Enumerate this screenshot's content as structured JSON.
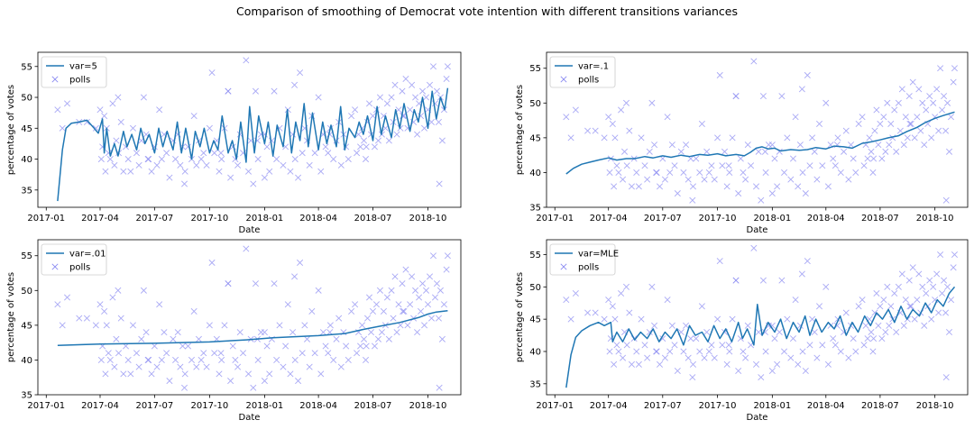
{
  "figure": {
    "suptitle": "Comparison of smoothing of Democrat vote intention with different transitions variances"
  },
  "colors": {
    "line": "#1f77b4",
    "polls": "#8c8cf2",
    "axes": "#000000",
    "legend_border": "#cccccc"
  },
  "chart_data": [
    {
      "type": "line",
      "title": "",
      "xlabel": "Date",
      "ylabel": "percentage of votes",
      "x_ticks": [
        "2017-01",
        "2017-04",
        "2017-07",
        "2017-10",
        "2018-01",
        "2018-04",
        "2018-07",
        "2018-10"
      ],
      "y_ticks": [
        35,
        40,
        45,
        50,
        55
      ],
      "xlim": [
        "2016-12-18",
        "2018-11-25"
      ],
      "ylim": [
        32.2,
        57.3
      ],
      "legend_position": "upper left",
      "series": [
        {
          "name": "var=5",
          "kind": "line",
          "color": "#1f77b4",
          "x": [
            "2017-01-20",
            "2017-01-28",
            "2017-02-03",
            "2017-02-12",
            "2017-02-25",
            "2017-03-10",
            "2017-03-22",
            "2017-03-29",
            "2017-04-05",
            "2017-04-08",
            "2017-04-12",
            "2017-04-18",
            "2017-04-25",
            "2017-05-01",
            "2017-05-10",
            "2017-05-16",
            "2017-05-24",
            "2017-06-01",
            "2017-06-08",
            "2017-06-15",
            "2017-06-22",
            "2017-07-01",
            "2017-07-08",
            "2017-07-15",
            "2017-07-22",
            "2017-08-01",
            "2017-08-08",
            "2017-08-15",
            "2017-08-22",
            "2017-09-01",
            "2017-09-07",
            "2017-09-15",
            "2017-09-22",
            "2017-10-01",
            "2017-10-08",
            "2017-10-15",
            "2017-10-22",
            "2017-11-01",
            "2017-11-08",
            "2017-11-15",
            "2017-11-22",
            "2017-12-01",
            "2017-12-07",
            "2017-12-15",
            "2017-12-22",
            "2018-01-01",
            "2018-01-07",
            "2018-01-15",
            "2018-01-22",
            "2018-02-01",
            "2018-02-08",
            "2018-02-15",
            "2018-02-22",
            "2018-03-01",
            "2018-03-08",
            "2018-03-15",
            "2018-03-22",
            "2018-04-01",
            "2018-04-08",
            "2018-04-15",
            "2018-04-22",
            "2018-05-01",
            "2018-05-08",
            "2018-05-15",
            "2018-05-22",
            "2018-06-01",
            "2018-06-08",
            "2018-06-15",
            "2018-06-22",
            "2018-07-01",
            "2018-07-08",
            "2018-07-15",
            "2018-07-22",
            "2018-08-01",
            "2018-08-08",
            "2018-08-15",
            "2018-08-22",
            "2018-09-01",
            "2018-09-08",
            "2018-09-15",
            "2018-09-22",
            "2018-10-01",
            "2018-10-08",
            "2018-10-15",
            "2018-10-22",
            "2018-10-29",
            "2018-11-03"
          ],
          "y": [
            33.2,
            41.5,
            45.0,
            45.8,
            46.0,
            46.3,
            45.0,
            44.2,
            46.5,
            41.0,
            45.0,
            40.5,
            42.5,
            40.5,
            44.5,
            42.0,
            44.0,
            41.5,
            45.0,
            42.5,
            44.0,
            41.0,
            45.0,
            42.0,
            44.5,
            41.5,
            46.0,
            41.0,
            45.0,
            40.0,
            44.5,
            42.0,
            45.0,
            41.0,
            43.0,
            41.5,
            47.0,
            41.0,
            43.0,
            40.0,
            46.0,
            39.5,
            48.5,
            41.0,
            47.0,
            42.5,
            46.0,
            40.5,
            45.5,
            42.0,
            48.0,
            41.0,
            46.0,
            43.0,
            49.0,
            42.0,
            47.5,
            41.5,
            46.0,
            42.5,
            45.5,
            42.0,
            48.5,
            41.5,
            45.0,
            43.5,
            46.0,
            44.0,
            47.0,
            43.0,
            48.5,
            44.0,
            47.0,
            43.5,
            48.0,
            45.0,
            49.0,
            44.5,
            48.0,
            46.0,
            50.0,
            45.0,
            51.0,
            46.5,
            50.0,
            48.0,
            51.5
          ]
        },
        {
          "name": "polls",
          "kind": "scatter",
          "marker": "x",
          "color": "#8c8cf2"
        }
      ]
    },
    {
      "type": "line",
      "title": "",
      "xlabel": "Date",
      "ylabel": "percentage of votes",
      "x_ticks": [
        "2017-01",
        "2017-04",
        "2017-07",
        "2017-10",
        "2018-01",
        "2018-04",
        "2018-07",
        "2018-10"
      ],
      "y_ticks": [
        35,
        40,
        45,
        50,
        55
      ],
      "xlim": [
        "2016-12-18",
        "2018-11-25"
      ],
      "ylim": [
        35,
        57.3
      ],
      "legend_position": "upper left",
      "series": [
        {
          "name": "var=.1",
          "kind": "line",
          "color": "#1f77b4",
          "x": [
            "2017-01-20",
            "2017-02-01",
            "2017-02-15",
            "2017-03-01",
            "2017-03-15",
            "2017-04-01",
            "2017-04-15",
            "2017-05-01",
            "2017-05-15",
            "2017-06-01",
            "2017-06-15",
            "2017-07-01",
            "2017-07-15",
            "2017-08-01",
            "2017-08-15",
            "2017-09-01",
            "2017-09-15",
            "2017-10-01",
            "2017-10-15",
            "2017-11-01",
            "2017-11-15",
            "2017-11-25",
            "2017-12-05",
            "2017-12-15",
            "2017-12-25",
            "2018-01-05",
            "2018-01-15",
            "2018-02-01",
            "2018-02-15",
            "2018-03-01",
            "2018-03-15",
            "2018-04-01",
            "2018-04-15",
            "2018-05-01",
            "2018-05-15",
            "2018-06-01",
            "2018-06-15",
            "2018-07-01",
            "2018-07-15",
            "2018-08-01",
            "2018-08-15",
            "2018-09-01",
            "2018-09-15",
            "2018-10-01",
            "2018-10-15",
            "2018-11-03"
          ],
          "y": [
            39.8,
            40.6,
            41.2,
            41.5,
            41.8,
            42.1,
            41.8,
            42.0,
            42.0,
            42.3,
            42.1,
            42.4,
            42.2,
            42.5,
            42.3,
            42.6,
            42.5,
            42.7,
            42.4,
            42.6,
            42.4,
            42.9,
            43.5,
            43.7,
            43.4,
            43.5,
            43.1,
            43.3,
            43.2,
            43.3,
            43.6,
            43.4,
            43.8,
            43.7,
            43.5,
            44.2,
            44.4,
            44.7,
            45.0,
            45.3,
            45.9,
            46.5,
            47.2,
            47.8,
            48.2,
            48.7
          ]
        },
        {
          "name": "polls",
          "kind": "scatter",
          "marker": "x",
          "color": "#8c8cf2"
        }
      ]
    },
    {
      "type": "line",
      "title": "",
      "xlabel": "Date",
      "ylabel": "percentage of votes",
      "x_ticks": [
        "2017-01",
        "2017-04",
        "2017-07",
        "2017-10",
        "2018-01",
        "2018-04",
        "2018-07",
        "2018-10"
      ],
      "y_ticks": [
        35,
        40,
        45,
        50,
        55
      ],
      "xlim": [
        "2016-12-18",
        "2018-11-25"
      ],
      "ylim": [
        35,
        57.3
      ],
      "legend_position": "upper left",
      "series": [
        {
          "name": "var=.01",
          "kind": "line",
          "color": "#1f77b4",
          "x": [
            "2017-01-20",
            "2017-04-01",
            "2017-07-01",
            "2017-10-01",
            "2017-12-01",
            "2018-01-15",
            "2018-04-01",
            "2018-05-15",
            "2018-06-15",
            "2018-07-15",
            "2018-08-15",
            "2018-09-15",
            "2018-10-01",
            "2018-10-15",
            "2018-11-03"
          ],
          "y": [
            42.1,
            42.3,
            42.4,
            42.6,
            42.9,
            43.2,
            43.5,
            43.8,
            44.4,
            44.9,
            45.4,
            46.1,
            46.6,
            46.9,
            47.1
          ]
        },
        {
          "name": "polls",
          "kind": "scatter",
          "marker": "x",
          "color": "#8c8cf2"
        }
      ]
    },
    {
      "type": "line",
      "title": "",
      "xlabel": "Date",
      "ylabel": "percentage of votes",
      "x_ticks": [
        "2017-01",
        "2017-04",
        "2017-07",
        "2017-10",
        "2018-01",
        "2018-04",
        "2018-07",
        "2018-10"
      ],
      "y_ticks": [
        35,
        40,
        45,
        50,
        55
      ],
      "xlim": [
        "2016-12-18",
        "2018-11-25"
      ],
      "ylim": [
        33.3,
        57.3
      ],
      "legend_position": "upper left",
      "series": [
        {
          "name": "var=MLE",
          "kind": "line",
          "color": "#1f77b4",
          "x": [
            "2017-01-20",
            "2017-01-28",
            "2017-02-05",
            "2017-02-15",
            "2017-03-01",
            "2017-03-15",
            "2017-03-25",
            "2017-04-05",
            "2017-04-08",
            "2017-04-15",
            "2017-04-25",
            "2017-05-05",
            "2017-05-15",
            "2017-05-25",
            "2017-06-05",
            "2017-06-15",
            "2017-06-25",
            "2017-07-05",
            "2017-07-15",
            "2017-07-25",
            "2017-08-05",
            "2017-08-15",
            "2017-08-25",
            "2017-09-05",
            "2017-09-15",
            "2017-09-25",
            "2017-10-05",
            "2017-10-15",
            "2017-10-25",
            "2017-11-05",
            "2017-11-12",
            "2017-11-20",
            "2017-12-01",
            "2017-12-07",
            "2017-12-15",
            "2017-12-25",
            "2018-01-05",
            "2018-01-15",
            "2018-01-25",
            "2018-02-05",
            "2018-02-15",
            "2018-02-25",
            "2018-03-05",
            "2018-03-15",
            "2018-03-25",
            "2018-04-05",
            "2018-04-15",
            "2018-04-25",
            "2018-05-05",
            "2018-05-15",
            "2018-05-25",
            "2018-06-05",
            "2018-06-15",
            "2018-06-25",
            "2018-07-05",
            "2018-07-15",
            "2018-07-25",
            "2018-08-05",
            "2018-08-15",
            "2018-08-25",
            "2018-09-05",
            "2018-09-15",
            "2018-09-25",
            "2018-10-05",
            "2018-10-15",
            "2018-10-25",
            "2018-11-03"
          ],
          "y": [
            34.4,
            39.5,
            42.2,
            43.2,
            44.0,
            44.5,
            44.0,
            44.5,
            41.5,
            43.0,
            41.5,
            43.5,
            41.8,
            43.0,
            42.0,
            43.5,
            41.5,
            43.0,
            42.0,
            43.5,
            41.0,
            44.0,
            42.5,
            43.0,
            41.5,
            44.0,
            42.0,
            43.5,
            41.5,
            44.5,
            42.0,
            43.5,
            41.0,
            47.3,
            42.5,
            44.5,
            43.0,
            45.0,
            42.0,
            44.5,
            43.0,
            45.5,
            42.5,
            45.0,
            43.0,
            44.5,
            43.5,
            45.5,
            42.5,
            44.5,
            43.0,
            45.5,
            44.0,
            46.0,
            45.0,
            46.5,
            44.5,
            47.0,
            45.0,
            46.5,
            45.5,
            47.5,
            46.0,
            48.0,
            47.0,
            49.0,
            50.0
          ]
        },
        {
          "name": "polls",
          "kind": "scatter",
          "marker": "x",
          "color": "#8c8cf2"
        }
      ]
    }
  ],
  "polls": {
    "x": [
      "2017-01-20",
      "2017-01-28",
      "2017-02-05",
      "2017-02-25",
      "2017-03-10",
      "2017-03-25",
      "2017-04-01",
      "2017-04-03",
      "2017-04-05",
      "2017-04-08",
      "2017-04-10",
      "2017-04-12",
      "2017-04-15",
      "2017-04-18",
      "2017-04-22",
      "2017-04-25",
      "2017-04-28",
      "2017-05-02",
      "2017-05-06",
      "2017-05-10",
      "2017-05-14",
      "2017-05-18",
      "2017-05-22",
      "2017-05-26",
      "2017-06-01",
      "2017-06-05",
      "2017-06-09",
      "2017-06-13",
      "2017-06-17",
      "2017-06-21",
      "2017-06-26",
      "2017-07-01",
      "2017-07-05",
      "2017-07-09",
      "2017-07-13",
      "2017-07-17",
      "2017-07-21",
      "2017-07-26",
      "2017-08-01",
      "2017-08-05",
      "2017-08-09",
      "2017-08-13",
      "2017-08-17",
      "2017-08-21",
      "2017-08-26",
      "2017-09-01",
      "2017-09-05",
      "2017-09-09",
      "2017-09-13",
      "2017-09-17",
      "2017-09-21",
      "2017-09-26",
      "2017-10-01",
      "2017-10-05",
      "2017-10-09",
      "2017-10-13",
      "2017-10-17",
      "2017-10-21",
      "2017-10-26",
      "2017-11-01",
      "2017-11-05",
      "2017-11-09",
      "2017-11-13",
      "2017-11-17",
      "2017-11-21",
      "2017-11-26",
      "2017-12-01",
      "2017-12-05",
      "2017-12-09",
      "2017-12-13",
      "2017-12-17",
      "2017-12-21",
      "2017-12-26",
      "2018-01-01",
      "2018-01-05",
      "2018-01-09",
      "2018-01-13",
      "2018-01-17",
      "2018-01-21",
      "2018-01-26",
      "2018-02-01",
      "2018-02-05",
      "2018-02-09",
      "2018-02-13",
      "2018-02-17",
      "2018-02-21",
      "2018-02-26",
      "2018-03-01",
      "2018-03-05",
      "2018-03-09",
      "2018-03-13",
      "2018-03-17",
      "2018-03-21",
      "2018-03-26",
      "2018-04-01",
      "2018-04-05",
      "2018-04-09",
      "2018-04-13",
      "2018-04-17",
      "2018-04-21",
      "2018-04-26",
      "2018-05-01",
      "2018-05-05",
      "2018-05-09",
      "2018-05-13",
      "2018-05-17",
      "2018-05-21",
      "2018-05-26",
      "2018-06-01",
      "2018-06-04",
      "2018-06-07",
      "2018-06-10",
      "2018-06-13",
      "2018-06-16",
      "2018-06-19",
      "2018-06-22",
      "2018-06-25",
      "2018-06-28",
      "2018-07-01",
      "2018-07-04",
      "2018-07-07",
      "2018-07-10",
      "2018-07-13",
      "2018-07-16",
      "2018-07-19",
      "2018-07-22",
      "2018-07-25",
      "2018-07-28",
      "2018-08-01",
      "2018-08-04",
      "2018-08-07",
      "2018-08-10",
      "2018-08-13",
      "2018-08-16",
      "2018-08-19",
      "2018-08-22",
      "2018-08-25",
      "2018-08-28",
      "2018-09-01",
      "2018-09-04",
      "2018-09-07",
      "2018-09-10",
      "2018-09-13",
      "2018-09-16",
      "2018-09-19",
      "2018-09-22",
      "2018-09-25",
      "2018-09-28",
      "2018-10-01",
      "2018-10-04",
      "2018-10-07",
      "2018-10-10",
      "2018-10-13",
      "2018-10-16",
      "2018-10-19",
      "2018-10-22",
      "2018-10-25",
      "2018-10-28",
      "2018-11-01",
      "2018-11-03",
      "2017-06-20",
      "2017-08-20",
      "2017-10-20",
      "2017-12-20",
      "2018-02-20",
      "2018-04-20",
      "2018-06-20",
      "2018-08-20",
      "2018-10-20",
      "2017-05-01",
      "2017-11-01",
      "2018-01-01"
    ],
    "y": [
      48,
      45,
      49,
      46,
      46,
      45,
      48,
      40,
      42,
      47,
      38,
      45,
      41,
      40,
      49,
      39,
      43,
      41,
      46,
      38,
      42,
      40,
      38,
      45,
      41,
      39,
      43,
      50,
      44,
      40,
      38,
      42,
      39,
      48,
      40,
      44,
      41,
      37,
      43,
      40,
      44,
      39,
      42,
      38,
      42,
      40,
      47,
      39,
      43,
      40,
      41,
      39,
      45,
      54,
      41,
      43,
      38,
      40,
      45,
      51,
      37,
      42,
      40,
      39,
      44,
      41,
      56,
      38,
      43,
      36,
      51,
      40,
      44,
      44,
      42,
      38,
      43,
      51,
      40,
      45,
      39,
      42,
      48,
      38,
      44,
      40,
      37,
      54,
      41,
      45,
      43,
      39,
      47,
      41,
      50,
      38,
      44,
      42,
      41,
      45,
      40,
      43,
      46,
      39,
      44,
      42,
      40,
      47,
      48,
      41,
      44,
      42,
      45,
      43,
      40,
      46,
      49,
      44,
      47,
      42,
      48,
      43,
      50,
      44,
      47,
      45,
      49,
      43,
      50,
      46,
      52,
      44,
      48,
      45,
      51,
      47,
      53,
      45,
      48,
      52,
      46,
      50,
      44,
      49,
      47,
      51,
      45,
      50,
      48,
      52,
      46,
      55,
      49,
      51,
      46,
      50,
      43,
      48,
      53,
      55,
      40,
      36,
      41,
      43,
      52,
      44,
      42,
      47,
      36,
      50,
      51,
      37
    ]
  },
  "legend_labels": {
    "polls": "polls"
  }
}
